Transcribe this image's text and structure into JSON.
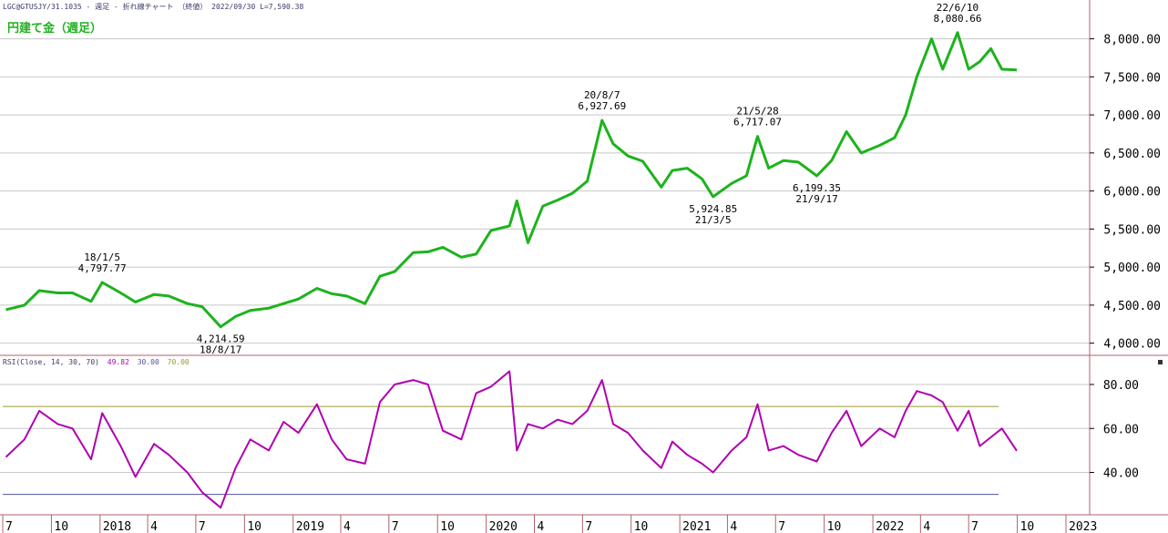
{
  "header": {
    "info": "LGC@GTUSJY/31.1035 - 週足 - 折れ線チャート （終値） 2022/09/30 L=7,590.38",
    "title": "円建て金（週足）",
    "rsi_label": "RSI(Close, 14, 30, 70)",
    "rsi_value": "49.82",
    "rsi_low": "30.00",
    "rsi_high": "70.00"
  },
  "colors": {
    "price_line": "#1db31d",
    "rsi_line": "#b000b0",
    "ob_line": "#9a9a30",
    "os_line": "#5050a0",
    "grid": "#c8c8c8",
    "frame": "#b06070"
  },
  "chart_data": [
    {
      "type": "line",
      "title": "円建て金（週足）",
      "ylim": [
        3900,
        8450
      ],
      "y_ticks": [
        "4,000.00",
        "4,500.00",
        "5,000.00",
        "5,500.00",
        "6,000.00",
        "6,500.00",
        "7,000.00",
        "7,500.00",
        "8,000.00"
      ],
      "y_tick_values": [
        4000,
        4500,
        5000,
        5500,
        6000,
        6500,
        7000,
        7500,
        8000
      ],
      "grid": true,
      "x": [
        "2017-07-07",
        "2017-08-11",
        "2017-09-08",
        "2017-10-13",
        "2017-11-10",
        "2017-12-15",
        "2018-01-05",
        "2018-02-09",
        "2018-03-09",
        "2018-04-13",
        "2018-05-11",
        "2018-06-15",
        "2018-07-13",
        "2018-08-17",
        "2018-09-14",
        "2018-10-12",
        "2018-11-16",
        "2018-12-14",
        "2019-01-11",
        "2019-02-15",
        "2019-03-15",
        "2019-04-12",
        "2019-05-17",
        "2019-06-14",
        "2019-07-12",
        "2019-08-16",
        "2019-09-13",
        "2019-10-11",
        "2019-11-15",
        "2019-12-13",
        "2020-01-10",
        "2020-02-14",
        "2020-02-28",
        "2020-03-20",
        "2020-04-17",
        "2020-05-15",
        "2020-06-12",
        "2020-07-10",
        "2020-08-07",
        "2020-08-28",
        "2020-09-25",
        "2020-10-23",
        "2020-11-27",
        "2020-12-18",
        "2021-01-15",
        "2021-02-12",
        "2021-03-05",
        "2021-04-09",
        "2021-05-07",
        "2021-05-28",
        "2021-06-18",
        "2021-07-16",
        "2021-08-13",
        "2021-09-17",
        "2021-10-15",
        "2021-11-12",
        "2021-12-10",
        "2022-01-14",
        "2022-02-11",
        "2022-03-04",
        "2022-03-25",
        "2022-04-22",
        "2022-05-13",
        "2022-06-10",
        "2022-07-01",
        "2022-07-22",
        "2022-08-12",
        "2022-09-02",
        "2022-09-30"
      ],
      "values": [
        4440,
        4500,
        4690,
        4660,
        4660,
        4550,
        4797.77,
        4660,
        4540,
        4640,
        4620,
        4520,
        4480,
        4214.59,
        4350,
        4430,
        4460,
        4520,
        4580,
        4720,
        4650,
        4620,
        4520,
        4880,
        4940,
        5190,
        5200,
        5260,
        5130,
        5170,
        5480,
        5540,
        5870,
        5320,
        5800,
        5880,
        5970,
        6130,
        6927.69,
        6620,
        6460,
        6390,
        6050,
        6270,
        6300,
        6160,
        5924.85,
        6100,
        6200,
        6717.07,
        6300,
        6400,
        6380,
        6199.35,
        6400,
        6780,
        6500,
        6600,
        6700,
        7000,
        7500,
        8000,
        7600,
        8080.66,
        7600,
        7700,
        7870,
        7600,
        7590.38
      ],
      "annotations": [
        {
          "date": "18/1/5",
          "value": "4,797.77"
        },
        {
          "date": "18/8/17",
          "value": "4,214.59"
        },
        {
          "date": "20/8/7",
          "value": "6,927.69"
        },
        {
          "date": "21/3/5",
          "value": "5,924.85"
        },
        {
          "date": "21/5/28",
          "value": "6,717.07"
        },
        {
          "date": "21/9/17",
          "value": "6,199.35"
        },
        {
          "date": "22/6/10",
          "value": "8,080.66"
        }
      ],
      "x_axis_labels": [
        "7",
        "10",
        "2018",
        "4",
        "7",
        "10",
        "2019",
        "4",
        "7",
        "10",
        "2020",
        "4",
        "7",
        "10",
        "2021",
        "4",
        "7",
        "10",
        "2022",
        "4",
        "7",
        "10",
        "2023"
      ]
    },
    {
      "type": "line",
      "title": "RSI(Close, 14, 30, 70)",
      "ylim": [
        22,
        92
      ],
      "y_ticks": [
        "40.00",
        "60.00",
        "80.00"
      ],
      "y_tick_values": [
        40,
        60,
        80
      ],
      "overbought": 70,
      "oversold": 30,
      "x": [
        "2017-07-07",
        "2017-08-11",
        "2017-09-08",
        "2017-10-13",
        "2017-11-10",
        "2017-12-15",
        "2018-01-05",
        "2018-02-09",
        "2018-03-09",
        "2018-04-13",
        "2018-05-11",
        "2018-06-15",
        "2018-07-13",
        "2018-08-17",
        "2018-09-14",
        "2018-10-12",
        "2018-11-16",
        "2018-12-14",
        "2019-01-11",
        "2019-02-15",
        "2019-03-15",
        "2019-04-12",
        "2019-05-17",
        "2019-06-14",
        "2019-07-12",
        "2019-08-16",
        "2019-09-13",
        "2019-10-11",
        "2019-11-15",
        "2019-12-13",
        "2020-01-10",
        "2020-02-14",
        "2020-02-28",
        "2020-03-20",
        "2020-04-17",
        "2020-05-15",
        "2020-06-12",
        "2020-07-10",
        "2020-08-07",
        "2020-08-28",
        "2020-09-25",
        "2020-10-23",
        "2020-11-27",
        "2020-12-18",
        "2021-01-15",
        "2021-02-12",
        "2021-03-05",
        "2021-04-09",
        "2021-05-07",
        "2021-05-28",
        "2021-06-18",
        "2021-07-16",
        "2021-08-13",
        "2021-09-17",
        "2021-10-15",
        "2021-11-12",
        "2021-12-10",
        "2022-01-14",
        "2022-02-11",
        "2022-03-04",
        "2022-03-25",
        "2022-04-22",
        "2022-05-13",
        "2022-06-10",
        "2022-07-01",
        "2022-07-22",
        "2022-08-12",
        "2022-09-02",
        "2022-09-30"
      ],
      "values": [
        47,
        55,
        68,
        62,
        60,
        46,
        67,
        52,
        38,
        53,
        48,
        40,
        31,
        24,
        42,
        55,
        50,
        63,
        58,
        71,
        55,
        46,
        44,
        72,
        80,
        82,
        80,
        59,
        55,
        76,
        79,
        86,
        50,
        62,
        60,
        64,
        62,
        68,
        82,
        62,
        58,
        50,
        42,
        54,
        48,
        44,
        40,
        50,
        56,
        71,
        50,
        52,
        48,
        45,
        58,
        68,
        52,
        60,
        56,
        68,
        77,
        75,
        72,
        59,
        68,
        52,
        56,
        60,
        49.82
      ]
    }
  ]
}
